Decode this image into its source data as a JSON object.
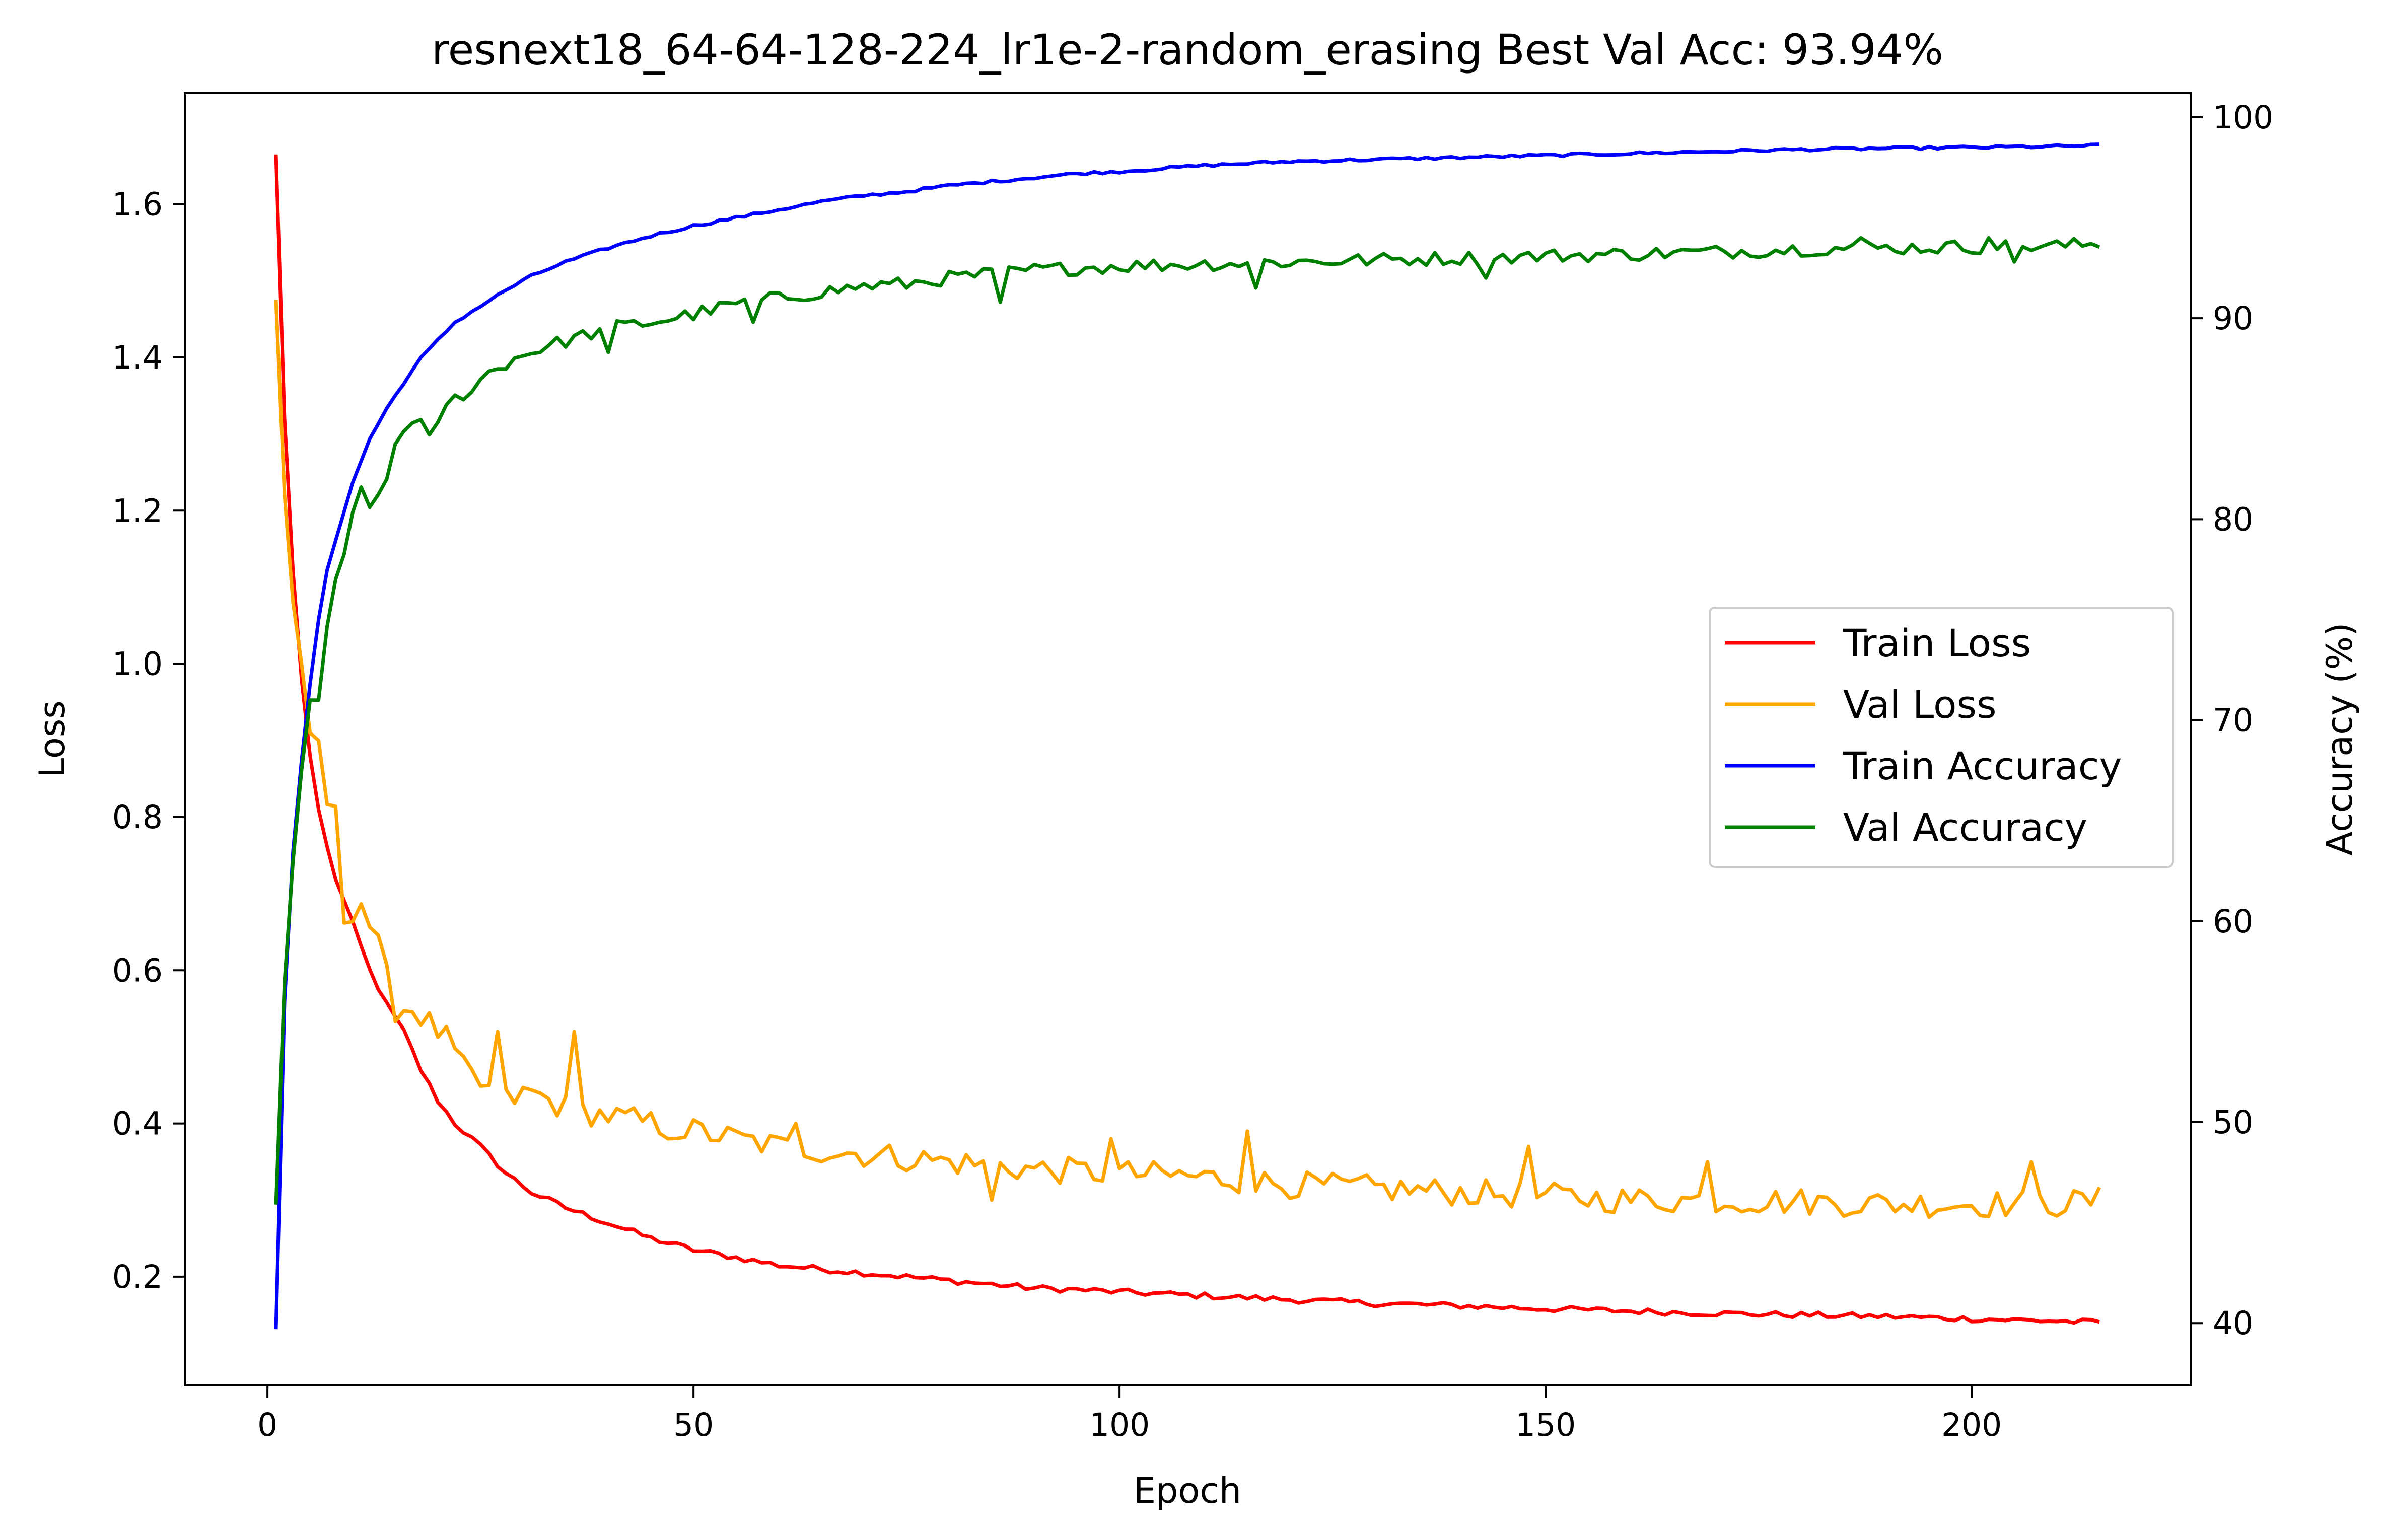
{
  "chart_data": {
    "type": "line",
    "title": "resnext18_64-64-128-224_lr1e-2-random_erasing Best Val Acc: 93.94%",
    "xlabel": "Epoch",
    "ylabel": "Loss",
    "y2label": "Accuracy (%)",
    "xlim": [
      -9.7,
      225.7
    ],
    "ylim": [
      0.058,
      1.745
    ],
    "y2lim": [
      36.9,
      101.2
    ],
    "xticks": [
      0,
      50,
      100,
      150,
      200
    ],
    "yticks": [
      0.2,
      0.4,
      0.6,
      0.8,
      1.0,
      1.2,
      1.4,
      1.6
    ],
    "y2ticks": [
      40,
      50,
      60,
      70,
      80,
      90,
      100
    ],
    "grid": false,
    "legend_position": "center-right",
    "series": [
      {
        "name": "Train Loss",
        "axis": "left",
        "color": "#ff0000",
        "anchors": [
          [
            1,
            1.665
          ],
          [
            2,
            1.32
          ],
          [
            3,
            1.12
          ],
          [
            4,
            0.98
          ],
          [
            5,
            0.88
          ],
          [
            6,
            0.81
          ],
          [
            7,
            0.76
          ],
          [
            8,
            0.72
          ],
          [
            10,
            0.66
          ],
          [
            12,
            0.6
          ],
          [
            14,
            0.555
          ],
          [
            16,
            0.52
          ],
          [
            18,
            0.47
          ],
          [
            20,
            0.43
          ],
          [
            22,
            0.4
          ],
          [
            25,
            0.37
          ],
          [
            28,
            0.335
          ],
          [
            31,
            0.31
          ],
          [
            35,
            0.29
          ],
          [
            40,
            0.27
          ],
          [
            45,
            0.25
          ],
          [
            50,
            0.235
          ],
          [
            55,
            0.225
          ],
          [
            60,
            0.215
          ],
          [
            65,
            0.21
          ],
          [
            70,
            0.205
          ],
          [
            75,
            0.2
          ],
          [
            80,
            0.195
          ],
          [
            85,
            0.19
          ],
          [
            90,
            0.185
          ],
          [
            95,
            0.183
          ],
          [
            100,
            0.18
          ],
          [
            110,
            0.175
          ],
          [
            120,
            0.17
          ],
          [
            130,
            0.165
          ],
          [
            140,
            0.162
          ],
          [
            150,
            0.158
          ],
          [
            160,
            0.155
          ],
          [
            170,
            0.152
          ],
          [
            180,
            0.15
          ],
          [
            190,
            0.148
          ],
          [
            200,
            0.145
          ],
          [
            210,
            0.142
          ],
          [
            215,
            0.14
          ]
        ],
        "noise": 0.004
      },
      {
        "name": "Val Loss",
        "axis": "left",
        "color": "#ffa500",
        "anchors": [
          [
            1,
            1.475
          ],
          [
            2,
            1.22
          ],
          [
            3,
            1.08
          ],
          [
            4,
            1.0
          ],
          [
            5,
            0.91
          ],
          [
            6,
            0.9
          ],
          [
            7,
            0.82
          ],
          [
            8,
            0.8
          ],
          [
            9,
            0.67
          ],
          [
            11,
            0.69
          ],
          [
            13,
            0.63
          ],
          [
            15,
            0.55
          ],
          [
            17,
            0.55
          ],
          [
            19,
            0.53
          ],
          [
            21,
            0.51
          ],
          [
            23,
            0.47
          ],
          [
            25,
            0.45
          ],
          [
            28,
            0.43
          ],
          [
            31,
            0.44
          ],
          [
            35,
            0.42
          ],
          [
            40,
            0.41
          ],
          [
            45,
            0.4
          ],
          [
            50,
            0.39
          ],
          [
            55,
            0.38
          ],
          [
            60,
            0.37
          ],
          [
            70,
            0.36
          ],
          [
            80,
            0.35
          ],
          [
            90,
            0.34
          ],
          [
            100,
            0.335
          ],
          [
            110,
            0.33
          ],
          [
            120,
            0.32
          ],
          [
            130,
            0.315
          ],
          [
            140,
            0.31
          ],
          [
            150,
            0.305
          ],
          [
            160,
            0.3
          ],
          [
            170,
            0.3
          ],
          [
            180,
            0.298
          ],
          [
            190,
            0.295
          ],
          [
            200,
            0.295
          ],
          [
            210,
            0.295
          ],
          [
            215,
            0.3
          ]
        ],
        "noise": 0.018,
        "spikes": [
          [
            27,
            0.52
          ],
          [
            36,
            0.52
          ],
          [
            47,
            0.38
          ],
          [
            62,
            0.4
          ],
          [
            85,
            0.3
          ],
          [
            99,
            0.38
          ],
          [
            115,
            0.39
          ],
          [
            148,
            0.37
          ],
          [
            169,
            0.35
          ],
          [
            207,
            0.35
          ]
        ]
      },
      {
        "name": "Train Accuracy",
        "axis": "right",
        "color": "#0000ff",
        "anchors": [
          [
            1,
            39.7
          ],
          [
            2,
            56
          ],
          [
            3,
            63.5
          ],
          [
            4,
            68
          ],
          [
            5,
            71.8
          ],
          [
            6,
            75
          ],
          [
            7,
            77.5
          ],
          [
            8,
            79
          ],
          [
            10,
            81.8
          ],
          [
            12,
            84
          ],
          [
            14,
            85.5
          ],
          [
            16,
            86.8
          ],
          [
            18,
            88
          ],
          [
            20,
            88.9
          ],
          [
            22,
            89.8
          ],
          [
            25,
            90.6
          ],
          [
            28,
            91.4
          ],
          [
            31,
            92.1
          ],
          [
            35,
            92.8
          ],
          [
            40,
            93.5
          ],
          [
            45,
            94.1
          ],
          [
            50,
            94.6
          ],
          [
            55,
            95
          ],
          [
            60,
            95.4
          ],
          [
            65,
            95.8
          ],
          [
            70,
            96.1
          ],
          [
            75,
            96.3
          ],
          [
            80,
            96.6
          ],
          [
            85,
            96.8
          ],
          [
            90,
            97
          ],
          [
            95,
            97.2
          ],
          [
            100,
            97.3
          ],
          [
            110,
            97.6
          ],
          [
            120,
            97.8
          ],
          [
            130,
            97.9
          ],
          [
            140,
            98
          ],
          [
            150,
            98.1
          ],
          [
            160,
            98.2
          ],
          [
            170,
            98.3
          ],
          [
            180,
            98.4
          ],
          [
            190,
            98.45
          ],
          [
            200,
            98.5
          ],
          [
            210,
            98.55
          ],
          [
            215,
            98.6
          ]
        ],
        "noise": 0.07
      },
      {
        "name": "Val Accuracy",
        "axis": "right",
        "color": "#008000",
        "anchors": [
          [
            1,
            45.9
          ],
          [
            2,
            57
          ],
          [
            3,
            63
          ],
          [
            4,
            67.5
          ],
          [
            5,
            71
          ],
          [
            6,
            71
          ],
          [
            7,
            74.5
          ],
          [
            8,
            77
          ],
          [
            10,
            80
          ],
          [
            12,
            80.5
          ],
          [
            14,
            82
          ],
          [
            15,
            84
          ],
          [
            17,
            84.5
          ],
          [
            20,
            85
          ],
          [
            22,
            86
          ],
          [
            24,
            86.5
          ],
          [
            26,
            87.3
          ],
          [
            29,
            88
          ],
          [
            32,
            88.5
          ],
          [
            36,
            89
          ],
          [
            40,
            89.5
          ],
          [
            45,
            89.8
          ],
          [
            50,
            90.2
          ],
          [
            55,
            90.7
          ],
          [
            60,
            91
          ],
          [
            65,
            91.3
          ],
          [
            70,
            91.6
          ],
          [
            75,
            91.7
          ],
          [
            80,
            92
          ],
          [
            85,
            92.2
          ],
          [
            90,
            92.4
          ],
          [
            95,
            92.5
          ],
          [
            100,
            92.6
          ],
          [
            110,
            92.7
          ],
          [
            120,
            92.8
          ],
          [
            130,
            92.9
          ],
          [
            140,
            93
          ],
          [
            150,
            93.1
          ],
          [
            160,
            93.2
          ],
          [
            170,
            93.3
          ],
          [
            180,
            93.45
          ],
          [
            190,
            93.5
          ],
          [
            200,
            93.55
          ],
          [
            210,
            93.6
          ],
          [
            215,
            93.7
          ]
        ],
        "noise": 0.35,
        "spikes": [
          [
            11,
            81.6
          ],
          [
            19,
            84.2
          ],
          [
            40,
            88.3
          ],
          [
            57,
            89.8
          ],
          [
            86,
            90.8
          ],
          [
            116,
            91.5
          ],
          [
            143,
            92
          ],
          [
            187,
            94
          ],
          [
            202,
            94
          ],
          [
            205,
            92.8
          ]
        ]
      }
    ]
  }
}
